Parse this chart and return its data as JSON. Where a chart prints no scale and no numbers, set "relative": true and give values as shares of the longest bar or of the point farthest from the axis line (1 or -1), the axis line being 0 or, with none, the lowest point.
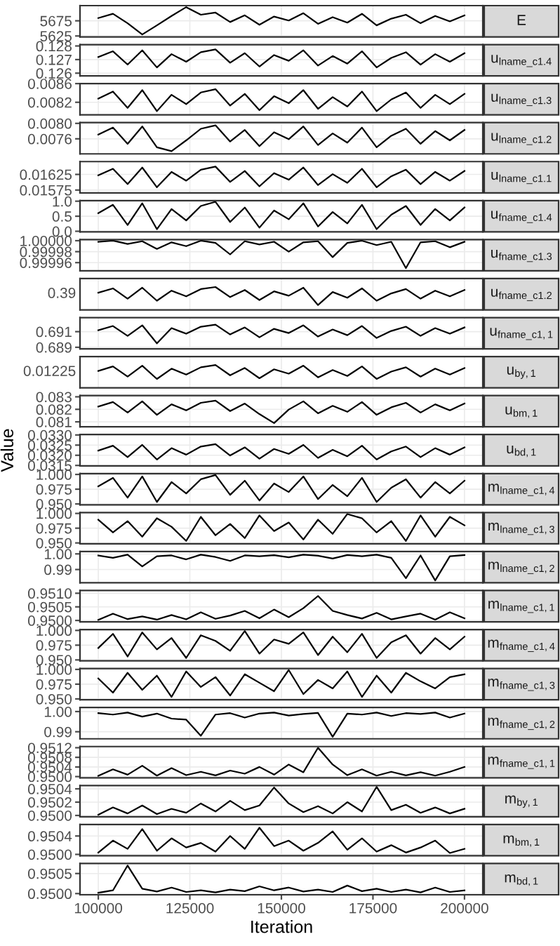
{
  "chart_data": [
    {
      "type": "line",
      "y2label": "E",
      "xticks": [
        100000,
        125000,
        150000,
        175000,
        200000
      ],
      "tick_labels": "y",
      "grid": true,
      "xlim": [
        95000,
        205000
      ],
      "ylim": [
        5622,
        5725
      ],
      "yticks": [
        5625,
        5675
      ],
      "x": [
        100000,
        104000,
        108000,
        112000,
        116000,
        120000,
        124000,
        128000,
        132000,
        136000,
        140000,
        144000,
        148000,
        152000,
        156000,
        160000,
        164000,
        168000,
        172000,
        176000,
        180000,
        184000,
        188000,
        192000,
        196000,
        200000
      ],
      "series": [
        {
          "color": "#000000",
          "values": [
            5684,
            5698,
            5667,
            5630,
            5660,
            5691,
            5720,
            5695,
            5702,
            5671,
            5693,
            5662,
            5689,
            5676,
            5700,
            5665,
            5687,
            5669,
            5698,
            5660,
            5682,
            5695,
            5667,
            5691,
            5673,
            5693
          ]
        }
      ]
    },
    {
      "type": "line",
      "y2label": "u$_{lname_c1.4}$",
      "xticks": [
        100000,
        125000,
        150000,
        175000,
        200000
      ],
      "tick_labels": "y",
      "grid": true,
      "xlim": [
        95000,
        205000
      ],
      "ylim": [
        0.1258,
        0.1281
      ],
      "yticks": [
        {
          "value": 0.126,
          "label": "0.126"
        },
        {
          "value": 0.127,
          "label": "0.127"
        },
        {
          "value": 0.128,
          "label": "0.128"
        }
      ],
      "x": [
        100000,
        104000,
        108000,
        112000,
        116000,
        120000,
        124000,
        128000,
        132000,
        136000,
        140000,
        144000,
        148000,
        152000,
        156000,
        160000,
        164000,
        168000,
        172000,
        176000,
        180000,
        184000,
        188000,
        192000,
        196000,
        200000
      ],
      "series": [
        {
          "color": "#000000",
          "values": [
            0.12719,
            0.12761,
            0.12663,
            0.12768,
            0.12642,
            0.1274,
            0.12684,
            0.12754,
            0.12775,
            0.12677,
            0.12747,
            0.12649,
            0.12733,
            0.12691,
            0.12768,
            0.12656,
            0.12726,
            0.1267,
            0.12761,
            0.12642,
            0.12712,
            0.12754,
            0.12663,
            0.1274,
            0.12684,
            0.12747
          ]
        }
      ]
    },
    {
      "type": "line",
      "y2label": "u$_{lname_c1.3}$",
      "xticks": [
        100000,
        125000,
        150000,
        175000,
        200000
      ],
      "tick_labels": "y",
      "grid": true,
      "xlim": [
        95000,
        205000
      ],
      "ylim": [
        0.00793,
        0.0086
      ],
      "yticks": [
        {
          "value": 0.0082,
          "label": "0.0082"
        },
        {
          "value": 0.0086,
          "label": "0.0086"
        }
      ],
      "x": [
        100000,
        104000,
        108000,
        112000,
        116000,
        120000,
        124000,
        128000,
        132000,
        136000,
        140000,
        144000,
        148000,
        152000,
        156000,
        160000,
        164000,
        168000,
        172000,
        176000,
        180000,
        184000,
        188000,
        192000,
        196000,
        200000
      ],
      "series": [
        {
          "color": "#000000",
          "values": [
            0.00828,
            0.00843,
            0.00808,
            0.00846,
            0.00801,
            0.00836,
            0.00816,
            0.00841,
            0.00848,
            0.00813,
            0.00838,
            0.00803,
            0.00833,
            0.00818,
            0.00846,
            0.00806,
            0.00831,
            0.00811,
            0.00843,
            0.00801,
            0.00826,
            0.00841,
            0.00808,
            0.00836,
            0.00816,
            0.00838
          ]
        }
      ]
    },
    {
      "type": "line",
      "y2label": "u$_{lname_c1.2}$",
      "xticks": [
        100000,
        125000,
        150000,
        175000,
        200000
      ],
      "tick_labels": "y",
      "grid": true,
      "xlim": [
        95000,
        205000
      ],
      "ylim": [
        0.00721,
        0.00802
      ],
      "yticks": [
        {
          "value": 0.0076,
          "label": "0.0076"
        },
        {
          "value": 0.008,
          "label": "0.0080"
        }
      ],
      "x": [
        100000,
        104000,
        108000,
        112000,
        116000,
        120000,
        124000,
        128000,
        132000,
        136000,
        140000,
        144000,
        148000,
        152000,
        156000,
        160000,
        164000,
        168000,
        172000,
        176000,
        180000,
        184000,
        188000,
        192000,
        196000,
        200000
      ],
      "series": [
        {
          "color": "#000000",
          "values": [
            0.00771,
            0.00789,
            0.00747,
            0.00792,
            0.00738,
            0.00728,
            0.00756,
            0.00786,
            0.00795,
            0.00753,
            0.00783,
            0.00741,
            0.00777,
            0.00759,
            0.00792,
            0.00744,
            0.00774,
            0.0075,
            0.00789,
            0.00738,
            0.00768,
            0.00786,
            0.00747,
            0.0078,
            0.00756,
            0.00783
          ]
        }
      ]
    },
    {
      "type": "line",
      "y2label": "u$_{lname_c1.1}$",
      "xticks": [
        100000,
        125000,
        150000,
        175000,
        200000
      ],
      "tick_labels": "y",
      "grid": true,
      "xlim": [
        95000,
        205000
      ],
      "ylim": [
        0.01566,
        0.01666
      ],
      "yticks": [
        {
          "value": 0.01575,
          "label": "0.01575"
        },
        {
          "value": 0.01625,
          "label": "0.01625"
        }
      ],
      "x": [
        100000,
        104000,
        108000,
        112000,
        116000,
        120000,
        124000,
        128000,
        132000,
        136000,
        140000,
        144000,
        148000,
        152000,
        156000,
        160000,
        164000,
        168000,
        172000,
        176000,
        180000,
        184000,
        188000,
        192000,
        196000,
        200000
      ],
      "series": [
        {
          "color": "#000000",
          "values": [
            0.01622,
            0.01643,
            0.01594,
            0.01647,
            0.01584,
            0.01633,
            0.01605,
            0.0164,
            0.0165,
            0.01601,
            0.01636,
            0.01587,
            0.01629,
            0.01608,
            0.01647,
            0.01591,
            0.01626,
            0.01598,
            0.01643,
            0.01584,
            0.01619,
            0.0164,
            0.01594,
            0.01633,
            0.01605,
            0.01636
          ]
        }
      ]
    },
    {
      "type": "line",
      "y2label": "u$_{fname_c1.4}$",
      "xticks": [
        100000,
        125000,
        150000,
        175000,
        200000
      ],
      "tick_labels": "y",
      "grid": true,
      "xlim": [
        95000,
        205000
      ],
      "ylim": [
        -0.02,
        1.02
      ],
      "yticks": [
        {
          "value": 0,
          "label": "0.0"
        },
        {
          "value": 0.5,
          "label": "0.5"
        },
        {
          "value": 1,
          "label": "1.0"
        }
      ],
      "x": [
        100000,
        104000,
        108000,
        112000,
        116000,
        120000,
        124000,
        128000,
        132000,
        136000,
        140000,
        144000,
        148000,
        152000,
        156000,
        160000,
        164000,
        168000,
        172000,
        176000,
        180000,
        184000,
        188000,
        192000,
        196000,
        200000
      ],
      "series": [
        {
          "color": "#000000",
          "values": [
            0.6,
            0.88,
            0.21,
            0.93,
            0.07,
            0.74,
            0.36,
            0.84,
            0.98,
            0.31,
            0.79,
            0.12,
            0.69,
            0.4,
            0.93,
            0.16,
            0.64,
            0.26,
            0.88,
            0.07,
            0.55,
            0.84,
            0.21,
            0.74,
            0.36,
            0.79
          ]
        }
      ]
    },
    {
      "type": "line",
      "y2label": "u$_{fname_c1.3}$",
      "xticks": [
        100000,
        125000,
        150000,
        175000,
        200000
      ],
      "tick_labels": "y",
      "grid": true,
      "xlim": [
        95000,
        205000
      ],
      "ylim": [
        0.999945,
        1.000002
      ],
      "yticks": [
        {
          "value": 0.99996,
          "label": "0.99996"
        },
        {
          "value": 0.99998,
          "label": "0.99998"
        },
        {
          "value": 1,
          "label": "1.00000"
        }
      ],
      "x": [
        100000,
        104000,
        108000,
        112000,
        116000,
        120000,
        124000,
        128000,
        132000,
        136000,
        140000,
        144000,
        148000,
        152000,
        156000,
        160000,
        164000,
        168000,
        172000,
        176000,
        180000,
        184000,
        188000,
        192000,
        196000,
        200000
      ],
      "series": [
        {
          "color": "#000000",
          "values": [
            0.999998,
            1.0,
            0.999994,
            0.999999,
            0.999985,
            0.999997,
            0.99999,
            1.0,
            0.999996,
            0.999975,
            0.999999,
            0.999993,
            0.999998,
            0.99998,
            0.999997,
            0.999999,
            0.99997,
            0.999996,
            1.0,
            0.999992,
            0.999998,
            0.99995,
            0.999997,
            0.999999,
            0.999988,
            0.999998
          ]
        }
      ]
    },
    {
      "type": "line",
      "y2label": "u$_{fname_c1.2}$",
      "xticks": [
        100000,
        125000,
        150000,
        175000,
        200000
      ],
      "tick_labels": "y",
      "grid": true,
      "xlim": [
        95000,
        205000
      ],
      "relative": true,
      "annotations": [
        "0.39"
      ],
      "x": [
        100000,
        104000,
        108000,
        112000,
        116000,
        120000,
        124000,
        128000,
        132000,
        136000,
        140000,
        144000,
        148000,
        152000,
        156000,
        160000,
        164000,
        168000,
        172000,
        176000,
        180000,
        184000,
        188000,
        192000,
        196000,
        200000
      ],
      "series": [
        {
          "color": "#000000",
          "values": [
            0.75,
            0.94,
            0.49,
            0.97,
            0.4,
            0.84,
            0.59,
            0.91,
            1,
            0.56,
            0.87,
            0.43,
            0.81,
            0.62,
            0.97,
            0.21,
            0.78,
            0.53,
            0.94,
            0.4,
            0.72,
            0.91,
            0.49,
            0.84,
            0.59,
            0.87
          ]
        }
      ]
    },
    {
      "type": "line",
      "y2label": "u$_{fname_c1,1}$",
      "xticks": [
        100000,
        125000,
        150000,
        175000,
        200000
      ],
      "tick_labels": "y",
      "grid": true,
      "xlim": [
        95000,
        205000
      ],
      "ylim": [
        0.6888,
        0.6928
      ],
      "yticks": [
        {
          "value": 0.689,
          "label": "0.689"
        },
        {
          "value": 0.691,
          "label": "0.691"
        }
      ],
      "x": [
        100000,
        104000,
        108000,
        112000,
        116000,
        120000,
        124000,
        128000,
        132000,
        136000,
        140000,
        144000,
        148000,
        152000,
        156000,
        160000,
        164000,
        168000,
        172000,
        176000,
        180000,
        184000,
        188000,
        192000,
        196000,
        200000
      ],
      "series": [
        {
          "color": "#000000",
          "values": [
            0.69118,
            0.69172,
            0.69046,
            0.69181,
            0.6895,
            0.69145,
            0.69073,
            0.69163,
            0.6919,
            0.69064,
            0.69154,
            0.69028,
            0.69136,
            0.69082,
            0.69181,
            0.69037,
            0.69127,
            0.69055,
            0.69172,
            0.69019,
            0.69109,
            0.69163,
            0.69046,
            0.69145,
            0.69073,
            0.69154
          ]
        }
      ]
    },
    {
      "type": "line",
      "y2label": "u$_{by,1}$",
      "xticks": [
        100000,
        125000,
        150000,
        175000,
        200000
      ],
      "tick_labels": "y",
      "grid": true,
      "xlim": [
        95000,
        205000
      ],
      "relative": true,
      "annotations": [
        "0.01225"
      ],
      "x": [
        100000,
        104000,
        108000,
        112000,
        116000,
        120000,
        124000,
        128000,
        132000,
        136000,
        140000,
        144000,
        148000,
        152000,
        156000,
        160000,
        164000,
        168000,
        172000,
        176000,
        180000,
        184000,
        188000,
        192000,
        196000,
        200000
      ],
      "series": [
        {
          "color": "#000000",
          "values": [
            0.74,
            0.94,
            0.49,
            0.97,
            0.39,
            0.84,
            0.58,
            0.9,
            1,
            0.55,
            0.87,
            0.42,
            0.81,
            0.62,
            0.97,
            0.46,
            0.78,
            0.52,
            0.94,
            0.39,
            0.71,
            0.9,
            0.49,
            0.84,
            0.58,
            0.87
          ]
        }
      ]
    },
    {
      "type": "line",
      "y2label": "u$_{bm,1}$",
      "xticks": [
        100000,
        125000,
        150000,
        175000,
        200000
      ],
      "tick_labels": "y",
      "grid": true,
      "xlim": [
        95000,
        205000
      ],
      "ylim": [
        0.0806,
        0.0831
      ],
      "yticks": [
        {
          "value": 0.081,
          "label": "0.081"
        },
        {
          "value": 0.082,
          "label": "0.082"
        },
        {
          "value": 0.083,
          "label": "0.083"
        }
      ],
      "x": [
        100000,
        104000,
        108000,
        112000,
        116000,
        120000,
        124000,
        128000,
        132000,
        136000,
        140000,
        144000,
        148000,
        152000,
        156000,
        160000,
        164000,
        168000,
        172000,
        176000,
        180000,
        184000,
        188000,
        192000,
        196000,
        200000
      ],
      "series": [
        {
          "color": "#000000",
          "values": [
            0.08222,
            0.08258,
            0.08174,
            0.08264,
            0.08156,
            0.0824,
            0.08192,
            0.08252,
            0.0827,
            0.08186,
            0.08246,
            0.08162,
            0.0809,
            0.08198,
            0.08264,
            0.08168,
            0.08228,
            0.0818,
            0.08258,
            0.08156,
            0.08216,
            0.08252,
            0.08174,
            0.0824,
            0.08192,
            0.08246
          ]
        }
      ]
    },
    {
      "type": "line",
      "y2label": "u$_{bd,1}$",
      "xticks": [
        100000,
        125000,
        150000,
        175000,
        200000
      ],
      "ylabel": "Value",
      "tick_labels": "y",
      "grid": true,
      "xlim": [
        95000,
        205000
      ],
      "ylim": [
        0.03148,
        0.03302
      ],
      "yticks": [
        {
          "value": 0.0315,
          "label": "0.0315"
        },
        {
          "value": 0.032,
          "label": "0.0320"
        },
        {
          "value": 0.0325,
          "label": "0.0325"
        },
        {
          "value": 0.033,
          "label": "0.0330"
        }
      ],
      "x": [
        100000,
        104000,
        108000,
        112000,
        116000,
        120000,
        124000,
        128000,
        132000,
        136000,
        140000,
        144000,
        148000,
        152000,
        156000,
        160000,
        164000,
        168000,
        172000,
        176000,
        180000,
        184000,
        188000,
        192000,
        196000,
        200000
      ],
      "series": [
        {
          "color": "#000000",
          "values": [
            0.03223,
            0.03247,
            0.03191,
            0.03251,
            0.03179,
            0.03235,
            0.03203,
            0.03243,
            0.03255,
            0.03199,
            0.03239,
            0.03183,
            0.03231,
            0.03207,
            0.03251,
            0.03187,
            0.03227,
            0.03195,
            0.03247,
            0.03179,
            0.03219,
            0.03243,
            0.03191,
            0.03235,
            0.03203,
            0.03239
          ]
        }
      ]
    },
    {
      "type": "line",
      "y2label": "m$_{lname_c1,4}$",
      "xticks": [
        100000,
        125000,
        150000,
        175000,
        200000
      ],
      "tick_labels": "y",
      "grid": true,
      "xlim": [
        95000,
        205000
      ],
      "ylim": [
        0.9485,
        1.0015
      ],
      "yticks": [
        {
          "value": 0.95,
          "label": "0.950"
        },
        {
          "value": 0.975,
          "label": "0.975"
        },
        {
          "value": 1,
          "label": "1.000"
        }
      ],
      "x": [
        100000,
        104000,
        108000,
        112000,
        116000,
        120000,
        124000,
        128000,
        132000,
        136000,
        140000,
        144000,
        148000,
        152000,
        156000,
        160000,
        164000,
        168000,
        172000,
        176000,
        180000,
        184000,
        188000,
        192000,
        196000,
        200000
      ],
      "series": [
        {
          "color": "#000000",
          "values": [
            0.9798,
            0.9942,
            0.9606,
            0.9966,
            0.9534,
            0.987,
            0.9678,
            0.9918,
            0.999,
            0.9654,
            0.9894,
            0.9558,
            0.9846,
            0.9702,
            0.9966,
            0.9582,
            0.9822,
            0.963,
            0.9942,
            0.9534,
            0.9774,
            0.9918,
            0.9606,
            0.987,
            0.9678,
            0.9894
          ]
        }
      ]
    },
    {
      "type": "line",
      "y2label": "m$_{lname_c1,3}$",
      "xticks": [
        100000,
        125000,
        150000,
        175000,
        200000
      ],
      "tick_labels": "y",
      "grid": true,
      "xlim": [
        95000,
        205000
      ],
      "ylim": [
        0.9485,
        1.0015
      ],
      "yticks": [
        {
          "value": 0.95,
          "label": "0.950"
        },
        {
          "value": 0.975,
          "label": "0.975"
        },
        {
          "value": 1,
          "label": "1.000"
        }
      ],
      "x": [
        100000,
        104000,
        108000,
        112000,
        116000,
        120000,
        124000,
        128000,
        132000,
        136000,
        140000,
        144000,
        148000,
        152000,
        156000,
        160000,
        164000,
        168000,
        172000,
        176000,
        180000,
        184000,
        188000,
        192000,
        196000,
        200000
      ],
      "series": [
        {
          "color": "#000000",
          "values": [
            0.9894,
            0.9678,
            0.987,
            0.9606,
            0.9918,
            0.9774,
            0.9534,
            0.9942,
            0.963,
            0.9822,
            0.9582,
            0.9966,
            0.9702,
            0.9846,
            0.9558,
            0.9894,
            0.9654,
            0.999,
            0.9918,
            0.9678,
            0.987,
            0.9534,
            0.9966,
            0.9606,
            0.9942,
            0.9798
          ]
        }
      ]
    },
    {
      "type": "line",
      "y2label": "m$_{lname_c1,2}$",
      "xticks": [
        100000,
        125000,
        150000,
        175000,
        200000
      ],
      "tick_labels": "y",
      "grid": true,
      "xlim": [
        95000,
        205000
      ],
      "ylim": [
        0.9815,
        1.0015
      ],
      "yticks": [
        {
          "value": 0.99,
          "label": "0.99"
        },
        {
          "value": 1,
          "label": "1.00"
        }
      ],
      "x": [
        100000,
        104000,
        108000,
        112000,
        116000,
        120000,
        124000,
        128000,
        132000,
        136000,
        140000,
        144000,
        148000,
        152000,
        156000,
        160000,
        164000,
        168000,
        172000,
        176000,
        180000,
        184000,
        188000,
        192000,
        196000,
        200000
      ],
      "series": [
        {
          "color": "#000000",
          "values": [
            0.999,
            0.9975,
            0.9995,
            0.992,
            0.9985,
            0.999,
            0.9965,
            0.9995,
            0.998,
            0.9955,
            0.999,
            0.9985,
            0.9992,
            0.9978,
            0.9995,
            0.9988,
            0.997,
            0.9993,
            0.9985,
            0.9995,
            0.9975,
            0.9845,
            0.999,
            0.983,
            0.9985,
            0.9992
          ]
        }
      ]
    },
    {
      "type": "line",
      "y2label": "m$_{lname_c1,1}$",
      "xticks": [
        100000,
        125000,
        150000,
        175000,
        200000
      ],
      "tick_labels": "y",
      "grid": true,
      "xlim": [
        95000,
        205000
      ],
      "ylim": [
        0.94995,
        0.9511
      ],
      "yticks": [
        {
          "value": 0.95,
          "label": "0.9500"
        },
        {
          "value": 0.9505,
          "label": "0.9505"
        },
        {
          "value": 0.951,
          "label": "0.9510"
        }
      ],
      "x": [
        100000,
        104000,
        108000,
        112000,
        116000,
        120000,
        124000,
        128000,
        132000,
        136000,
        140000,
        144000,
        148000,
        152000,
        156000,
        160000,
        164000,
        168000,
        172000,
        176000,
        180000,
        184000,
        188000,
        192000,
        196000,
        200000
      ],
      "series": [
        {
          "color": "#000000",
          "values": [
            0.95002,
            0.95025,
            0.95005,
            0.95015,
            0.95003,
            0.9502,
            0.95004,
            0.9503,
            0.95006,
            0.95018,
            0.95035,
            0.95008,
            0.9504,
            0.95012,
            0.95045,
            0.9509,
            0.95035,
            0.9502,
            0.95007,
            0.95028,
            0.95004,
            0.95015,
            0.95025,
            0.95003,
            0.9503,
            0.95008
          ]
        }
      ]
    },
    {
      "type": "line",
      "y2label": "m$_{fname_c1,4}$",
      "xticks": [
        100000,
        125000,
        150000,
        175000,
        200000
      ],
      "tick_labels": "y",
      "grid": true,
      "xlim": [
        95000,
        205000
      ],
      "ylim": [
        0.9485,
        1.0015
      ],
      "yticks": [
        {
          "value": 0.95,
          "label": "0.950"
        },
        {
          "value": 0.975,
          "label": "0.975"
        },
        {
          "value": 1,
          "label": "1.000"
        }
      ],
      "x": [
        100000,
        104000,
        108000,
        112000,
        116000,
        120000,
        124000,
        128000,
        132000,
        136000,
        140000,
        144000,
        148000,
        152000,
        156000,
        160000,
        164000,
        168000,
        172000,
        176000,
        180000,
        184000,
        188000,
        192000,
        196000,
        200000
      ],
      "series": [
        {
          "color": "#000000",
          "values": [
            0.9702,
            0.9942,
            0.9558,
            0.9966,
            0.9678,
            0.987,
            0.9534,
            0.9918,
            0.9822,
            0.9654,
            0.999,
            0.9606,
            0.9846,
            0.9774,
            0.9966,
            0.9582,
            0.9894,
            0.963,
            0.9942,
            0.9534,
            0.9798,
            0.9918,
            0.9606,
            0.987,
            0.9678,
            0.9894
          ]
        }
      ]
    },
    {
      "type": "line",
      "y2label": "m$_{fname_c1,3}$",
      "xticks": [
        100000,
        125000,
        150000,
        175000,
        200000
      ],
      "tick_labels": "y",
      "grid": true,
      "xlim": [
        95000,
        205000
      ],
      "ylim": [
        0.9485,
        1.0015
      ],
      "yticks": [
        {
          "value": 0.95,
          "label": "0.950"
        },
        {
          "value": 0.975,
          "label": "0.975"
        },
        {
          "value": 1,
          "label": "1.000"
        }
      ],
      "x": [
        100000,
        104000,
        108000,
        112000,
        116000,
        120000,
        124000,
        128000,
        132000,
        136000,
        140000,
        144000,
        148000,
        152000,
        156000,
        160000,
        164000,
        168000,
        172000,
        176000,
        180000,
        184000,
        188000,
        192000,
        196000,
        200000
      ],
      "series": [
        {
          "color": "#000000",
          "values": [
            0.9846,
            0.9606,
            0.9942,
            0.9654,
            0.9894,
            0.9534,
            0.9966,
            0.9702,
            0.987,
            0.9558,
            0.9918,
            0.9774,
            0.963,
            0.999,
            0.9582,
            0.9822,
            0.9678,
            0.9966,
            0.9534,
            0.9894,
            0.9606,
            0.9942,
            0.9798,
            0.9678,
            0.987,
            0.9918
          ]
        }
      ]
    },
    {
      "type": "line",
      "y2label": "m$_{fname_c1,2}$",
      "xticks": [
        100000,
        125000,
        150000,
        175000,
        200000
      ],
      "tick_labels": "y",
      "grid": true,
      "xlim": [
        95000,
        205000
      ],
      "ylim": [
        0.9865,
        1.002
      ],
      "yticks": [
        {
          "value": 0.99,
          "label": "0.99"
        },
        {
          "value": 1,
          "label": "1.00"
        }
      ],
      "x": [
        100000,
        104000,
        108000,
        112000,
        116000,
        120000,
        124000,
        128000,
        132000,
        136000,
        140000,
        144000,
        148000,
        152000,
        156000,
        160000,
        164000,
        168000,
        172000,
        176000,
        180000,
        184000,
        188000,
        192000,
        196000,
        200000
      ],
      "series": [
        {
          "color": "#000000",
          "values": [
            0.9992,
            0.9985,
            0.9995,
            0.9975,
            0.999,
            0.9965,
            0.996,
            0.988,
            0.9985,
            0.9992,
            0.997,
            0.999,
            0.9995,
            0.998,
            0.9988,
            0.9993,
            0.9875,
            0.999,
            0.9985,
            0.9995,
            0.9978,
            0.9992,
            0.9988,
            0.9995,
            0.997,
            0.999
          ]
        }
      ]
    },
    {
      "type": "line",
      "y2label": "m$_{fname_c1,1}$",
      "xticks": [
        100000,
        125000,
        150000,
        175000,
        200000
      ],
      "tick_labels": "y",
      "grid": true,
      "xlim": [
        95000,
        205000
      ],
      "ylim": [
        0.94995,
        0.95125
      ],
      "yticks": [
        {
          "value": 0.95,
          "label": "0.9500"
        },
        {
          "value": 0.9504,
          "label": "0.9504"
        },
        {
          "value": 0.9508,
          "label": "0.9508"
        },
        {
          "value": 0.9512,
          "label": "0.9512"
        }
      ],
      "x": [
        100000,
        104000,
        108000,
        112000,
        116000,
        120000,
        124000,
        128000,
        132000,
        136000,
        140000,
        144000,
        148000,
        152000,
        156000,
        160000,
        164000,
        168000,
        172000,
        176000,
        180000,
        184000,
        188000,
        192000,
        196000,
        200000
      ],
      "series": [
        {
          "color": "#000000",
          "values": [
            0.95003,
            0.9503,
            0.95008,
            0.95045,
            0.95004,
            0.95035,
            0.95006,
            0.9502,
            0.95005,
            0.95025,
            0.95012,
            0.9504,
            0.95008,
            0.9505,
            0.95018,
            0.9512,
            0.9505,
            0.95006,
            0.9503,
            0.95004,
            0.9502,
            0.95005,
            0.95018,
            0.95004,
            0.9502,
            0.9504
          ]
        }
      ]
    },
    {
      "type": "line",
      "y2label": "m$_{by,1}$",
      "xticks": [
        100000,
        125000,
        150000,
        175000,
        200000
      ],
      "tick_labels": "y",
      "grid": true,
      "xlim": [
        95000,
        205000
      ],
      "ylim": [
        0.94998,
        0.95045
      ],
      "yticks": [
        {
          "value": 0.95,
          "label": "0.9500"
        },
        {
          "value": 0.9502,
          "label": "0.9502"
        },
        {
          "value": 0.9504,
          "label": "0.9504"
        }
      ],
      "x": [
        100000,
        104000,
        108000,
        112000,
        116000,
        120000,
        124000,
        128000,
        132000,
        136000,
        140000,
        144000,
        148000,
        152000,
        156000,
        160000,
        164000,
        168000,
        172000,
        176000,
        180000,
        184000,
        188000,
        192000,
        196000,
        200000
      ],
      "series": [
        {
          "color": "#000000",
          "values": [
            0.95001,
            0.95012,
            0.95003,
            0.95015,
            0.95002,
            0.9501,
            0.95004,
            0.95018,
            0.95006,
            0.95022,
            0.95008,
            0.95015,
            0.95042,
            0.95018,
            0.95005,
            0.95014,
            0.95003,
            0.9502,
            0.95006,
            0.95043,
            0.95008,
            0.95016,
            0.95004,
            0.95012,
            0.95003,
            0.9501
          ]
        }
      ]
    },
    {
      "type": "line",
      "y2label": "m$_{bm,1}$",
      "xticks": [
        100000,
        125000,
        150000,
        175000,
        200000
      ],
      "tick_labels": "y",
      "grid": true,
      "xlim": [
        95000,
        205000
      ],
      "ylim": [
        0.94997,
        0.95065
      ],
      "yticks": [
        {
          "value": 0.95,
          "label": "0.9500"
        },
        {
          "value": 0.9504,
          "label": "0.9504"
        }
      ],
      "x": [
        100000,
        104000,
        108000,
        112000,
        116000,
        120000,
        124000,
        128000,
        132000,
        136000,
        140000,
        144000,
        148000,
        152000,
        156000,
        160000,
        164000,
        168000,
        172000,
        176000,
        180000,
        184000,
        188000,
        192000,
        196000,
        200000
      ],
      "series": [
        {
          "color": "#000000",
          "values": [
            0.95004,
            0.9503,
            0.95012,
            0.95055,
            0.95008,
            0.95035,
            0.95015,
            0.95025,
            0.95006,
            0.9504,
            0.95012,
            0.95058,
            0.95018,
            0.9503,
            0.95008,
            0.95025,
            0.9505,
            0.9501,
            0.95035,
            0.95006,
            0.9502,
            0.95004,
            0.95015,
            0.9503,
            0.95003,
            0.95012
          ]
        }
      ]
    },
    {
      "type": "line",
      "y2label": "m$_{bd,1}$",
      "xlabel": "Iteration",
      "grid": true,
      "xlim": [
        95000,
        205000
      ],
      "xticks": [
        100000,
        125000,
        150000,
        175000,
        200000
      ],
      "ylim": [
        0.94997,
        0.95075
      ],
      "yticks": [
        {
          "value": 0.95,
          "label": "0.9500"
        },
        {
          "value": 0.9505,
          "label": "0.9505"
        }
      ],
      "x": [
        100000,
        104000,
        108000,
        112000,
        116000,
        120000,
        124000,
        128000,
        132000,
        136000,
        140000,
        144000,
        148000,
        152000,
        156000,
        160000,
        164000,
        168000,
        172000,
        176000,
        180000,
        184000,
        188000,
        192000,
        196000,
        200000
      ],
      "series": [
        {
          "color": "#000000",
          "values": [
            0.95002,
            0.95008,
            0.9507,
            0.95012,
            0.95005,
            0.95015,
            0.95004,
            0.95008,
            0.95003,
            0.9501,
            0.95006,
            0.95018,
            0.95008,
            0.95015,
            0.95005,
            0.9501,
            0.95004,
            0.9502,
            0.95006,
            0.95012,
            0.95004,
            0.9501,
            0.95003,
            0.95015,
            0.95004,
            0.95008
          ]
        }
      ]
    }
  ]
}
